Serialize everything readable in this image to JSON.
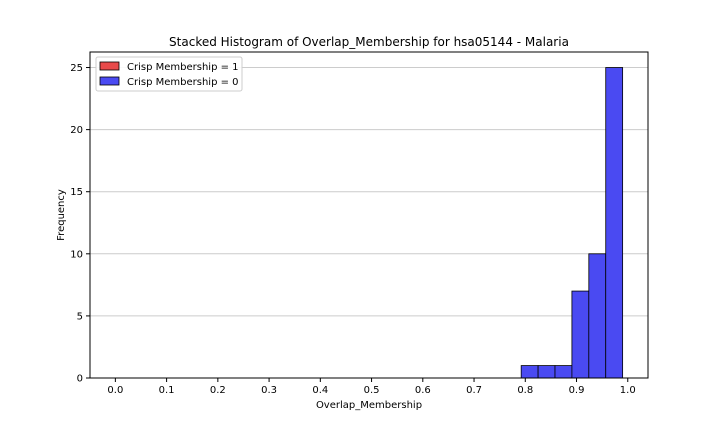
{
  "chart_data": {
    "type": "bar",
    "title": "Stacked Histogram of Overlap_Membership for hsa05144 - Malaria",
    "xlabel": "Overlap_Membership",
    "ylabel": "Frequency",
    "xlim": [
      -0.0495,
      1.0395
    ],
    "ylim": [
      0,
      26.25
    ],
    "xticks": [
      "0.0",
      "0.1",
      "0.2",
      "0.3",
      "0.4",
      "0.5",
      "0.6",
      "0.7",
      "0.8",
      "0.9",
      "1.0"
    ],
    "xtick_values": [
      0.0,
      0.1,
      0.2,
      0.3,
      0.4,
      0.5,
      0.6,
      0.7,
      0.8,
      0.9,
      1.0
    ],
    "yticks": [
      "0",
      "5",
      "10",
      "15",
      "20",
      "25"
    ],
    "ytick_values": [
      0,
      5,
      10,
      15,
      20,
      25
    ],
    "grid": "y",
    "legend_position": "top-left",
    "bin_edges": [
      0.0,
      0.033,
      0.066,
      0.099,
      0.132,
      0.165,
      0.198,
      0.231,
      0.264,
      0.297,
      0.33,
      0.363,
      0.396,
      0.429,
      0.462,
      0.495,
      0.528,
      0.561,
      0.594,
      0.627,
      0.66,
      0.693,
      0.726,
      0.759,
      0.792,
      0.825,
      0.858,
      0.891,
      0.924,
      0.957,
      0.99
    ],
    "series": [
      {
        "name": "Crisp Membership = 1",
        "color": "#e84a4a",
        "values": [
          0,
          0,
          0,
          0,
          0,
          0,
          0,
          0,
          0,
          0,
          0,
          0,
          0,
          0,
          0,
          0,
          0,
          0,
          0,
          0,
          0,
          0,
          0,
          0,
          0,
          0,
          0,
          0,
          0,
          0
        ]
      },
      {
        "name": "Crisp Membership = 0",
        "color": "#4a4af2",
        "values": [
          0,
          0,
          0,
          0,
          0,
          0,
          0,
          0,
          0,
          0,
          0,
          0,
          0,
          0,
          0,
          0,
          0,
          0,
          0,
          0,
          0,
          0,
          0,
          0,
          1,
          1,
          1,
          7,
          10,
          25
        ]
      }
    ]
  }
}
